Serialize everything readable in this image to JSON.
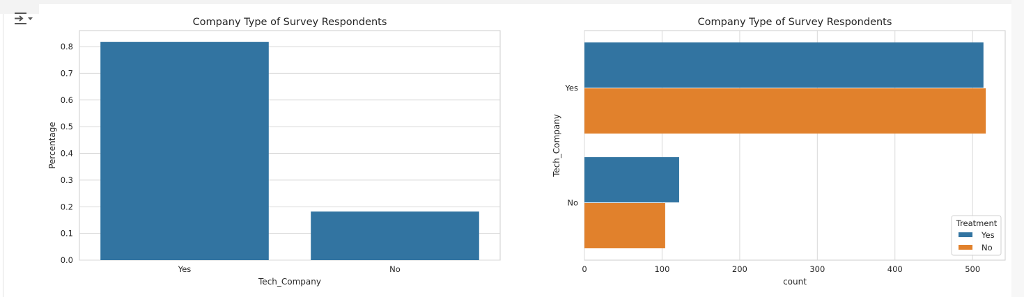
{
  "toolbar": {
    "output_toggle_icon": "output-collapse-icon"
  },
  "colors": {
    "series_yes": "#3274a1",
    "series_no": "#e1812c",
    "grid": "#d9d9d9",
    "axes_edge": "#cccccc"
  },
  "chart_data": [
    {
      "type": "bar",
      "title": "Company Type of Survey Respondents",
      "xlabel": "Tech_Company",
      "ylabel": "Percentage",
      "categories": [
        "Yes",
        "No"
      ],
      "values": [
        0.818,
        0.182
      ],
      "ylim": [
        0,
        0.86
      ],
      "yticks": [
        0.0,
        0.1,
        0.2,
        0.3,
        0.4,
        0.5,
        0.6,
        0.7,
        0.8
      ],
      "grid": true
    },
    {
      "type": "bar",
      "orientation": "horizontal",
      "title": "Company Type of Survey Respondents",
      "xlabel": "count",
      "ylabel": "Tech_Company",
      "categories": [
        "Yes",
        "No"
      ],
      "series": [
        {
          "name": "Yes",
          "values": [
            514,
            122
          ]
        },
        {
          "name": "No",
          "values": [
            517,
            104
          ]
        }
      ],
      "legend_title": "Treatment",
      "legend_position": "bottom-right",
      "xlim": [
        0,
        542
      ],
      "xticks": [
        0,
        100,
        200,
        300,
        400,
        500
      ],
      "grid": true
    }
  ]
}
